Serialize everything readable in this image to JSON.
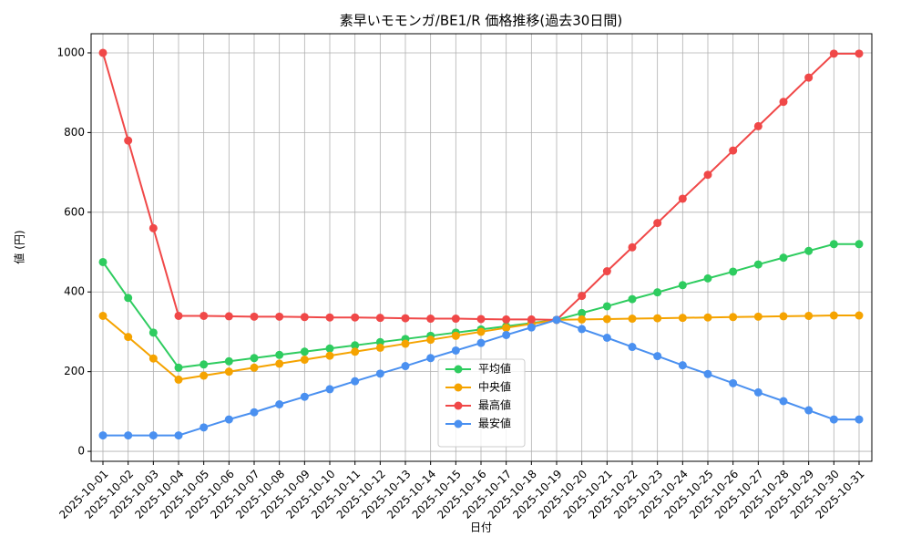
{
  "chart_data": {
    "type": "line",
    "title": "素早いモモンガ/BE1/R 価格推移(過去30日間)",
    "xlabel": "日付",
    "ylabel": "値 (円)",
    "categories": [
      "2025-10-01",
      "2025-10-02",
      "2025-10-03",
      "2025-10-04",
      "2025-10-05",
      "2025-10-06",
      "2025-10-07",
      "2025-10-08",
      "2025-10-09",
      "2025-10-10",
      "2025-10-11",
      "2025-10-12",
      "2025-10-13",
      "2025-10-14",
      "2025-10-15",
      "2025-10-16",
      "2025-10-17",
      "2025-10-18",
      "2025-10-19",
      "2025-10-20",
      "2025-10-21",
      "2025-10-22",
      "2025-10-23",
      "2025-10-24",
      "2025-10-25",
      "2025-10-26",
      "2025-10-27",
      "2025-10-28",
      "2025-10-29",
      "2025-10-30",
      "2025-10-31"
    ],
    "series": [
      {
        "name": "平均値",
        "color": "#2ecc5f",
        "values": [
          475,
          385,
          298,
          210,
          218,
          226,
          234,
          242,
          250,
          258,
          266,
          274,
          282,
          290,
          298,
          306,
          314,
          322,
          330,
          347,
          364,
          382,
          399,
          417,
          434,
          451,
          469,
          486,
          503,
          520,
          520
        ]
      },
      {
        "name": "中央値",
        "color": "#f5a300",
        "values": [
          340,
          287,
          233,
          180,
          190,
          200,
          210,
          220,
          230,
          240,
          250,
          260,
          270,
          280,
          290,
          300,
          310,
          320,
          330,
          331,
          332,
          333,
          334,
          335,
          336,
          337,
          338,
          339,
          340,
          341,
          341
        ]
      },
      {
        "name": "最高値",
        "color": "#f04848",
        "values": [
          1000,
          780,
          560,
          340,
          340,
          339,
          338,
          338,
          337,
          336,
          336,
          335,
          334,
          333,
          333,
          332,
          331,
          331,
          330,
          390,
          452,
          512,
          573,
          634,
          694,
          755,
          816,
          877,
          938,
          998,
          998
        ]
      },
      {
        "name": "最安値",
        "color": "#4a90f0",
        "values": [
          40,
          40,
          40,
          40,
          60,
          80,
          98,
          118,
          137,
          156,
          176,
          195,
          214,
          234,
          253,
          272,
          292,
          311,
          330,
          307,
          285,
          262,
          239,
          216,
          194,
          171,
          148,
          126,
          103,
          80,
          80
        ]
      }
    ],
    "ylim": [
      -25,
      1048
    ],
    "yticks": [
      0,
      200,
      400,
      600,
      800,
      1000
    ],
    "grid": true,
    "legend": "lower center"
  }
}
